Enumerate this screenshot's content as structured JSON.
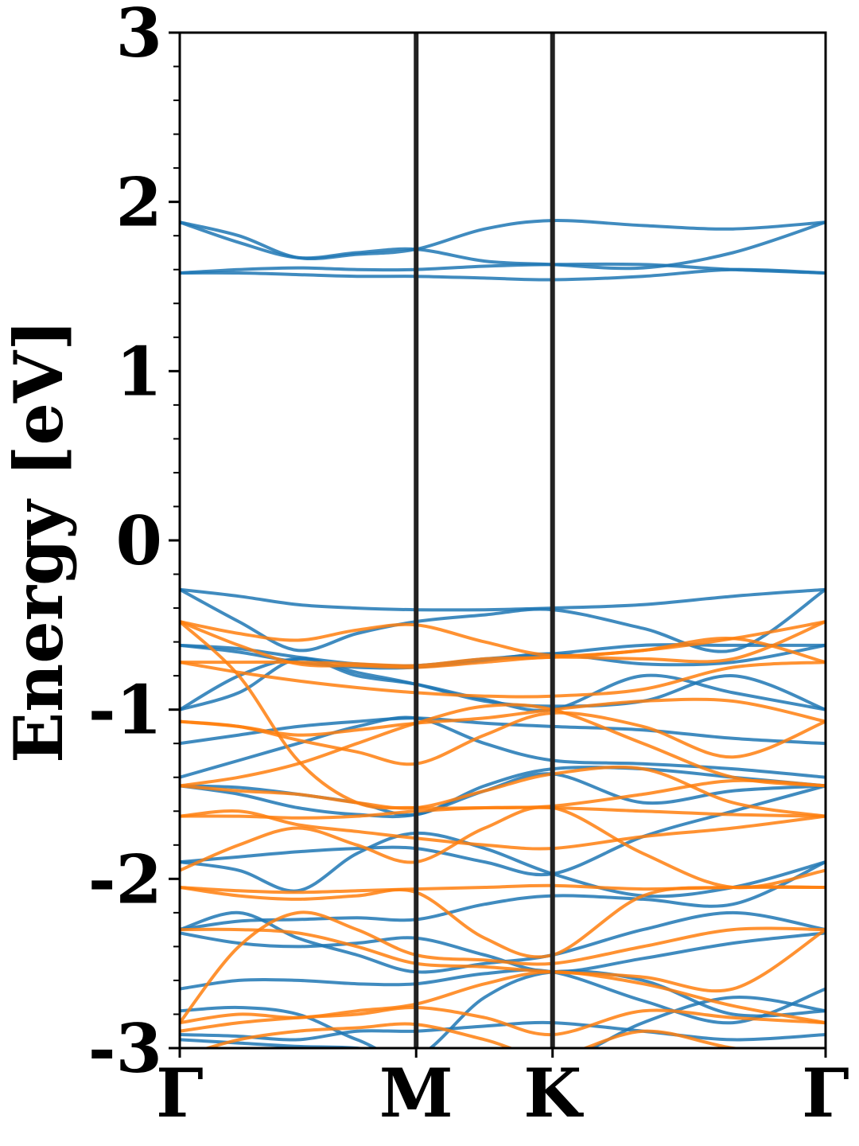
{
  "chart_data": {
    "type": "line",
    "title": "",
    "xlabel": "",
    "ylabel": "Energy [eV]",
    "ylim": [
      -3,
      3
    ],
    "yticks": [
      "3",
      "2",
      "1",
      "0",
      "-1",
      "-2",
      "-3"
    ],
    "ytick_values": [
      3,
      2,
      1,
      0,
      -1,
      -2,
      -3
    ],
    "yminor_step": 0.2,
    "kpoints": [
      {
        "label": "Γ",
        "x": 0
      },
      {
        "label": "M",
        "x": 1
      },
      {
        "label": "K",
        "x": 1.577
      },
      {
        "label": "Γ",
        "x": 2.732
      }
    ],
    "grid": false,
    "colors": {
      "spin_up": "#1f77b4",
      "spin_down": "#ff7f0e",
      "divider": "#222222"
    },
    "x": [
      0,
      0.25,
      0.5,
      0.75,
      1,
      1.29,
      1.577,
      1.96,
      2.34,
      2.732
    ],
    "series": [
      {
        "spin": "up",
        "values": [
          1.88,
          1.8,
          1.67,
          1.69,
          1.72,
          1.84,
          1.89,
          1.86,
          1.84,
          1.88
        ]
      },
      {
        "spin": "up",
        "values": [
          1.88,
          1.76,
          1.67,
          1.7,
          1.72,
          1.65,
          1.63,
          1.61,
          1.7,
          1.88
        ]
      },
      {
        "spin": "up",
        "values": [
          1.58,
          1.6,
          1.61,
          1.6,
          1.6,
          1.62,
          1.63,
          1.63,
          1.6,
          1.58
        ]
      },
      {
        "spin": "up",
        "values": [
          1.58,
          1.58,
          1.57,
          1.56,
          1.56,
          1.55,
          1.54,
          1.56,
          1.6,
          1.58
        ]
      },
      {
        "spin": "up",
        "values": [
          -0.29,
          -0.33,
          -0.38,
          -0.4,
          -0.41,
          -0.41,
          -0.4,
          -0.38,
          -0.33,
          -0.29
        ]
      },
      {
        "spin": "up",
        "values": [
          -0.29,
          -0.48,
          -0.65,
          -0.55,
          -0.48,
          -0.44,
          -0.41,
          -0.52,
          -0.65,
          -0.29
        ]
      },
      {
        "spin": "up",
        "values": [
          -0.62,
          -0.64,
          -0.69,
          -0.73,
          -0.74,
          -0.7,
          -0.67,
          -0.62,
          -0.62,
          -0.62
        ]
      },
      {
        "spin": "up",
        "values": [
          -0.62,
          -0.66,
          -0.72,
          -0.75,
          -0.75,
          -0.71,
          -0.67,
          -0.73,
          -0.72,
          -0.62
        ]
      },
      {
        "spin": "up",
        "values": [
          -1.0,
          -0.9,
          -0.7,
          -0.8,
          -0.85,
          -0.94,
          -1.0,
          -0.8,
          -0.9,
          -1.0
        ]
      },
      {
        "spin": "up",
        "values": [
          -1.0,
          -0.8,
          -0.7,
          -0.78,
          -0.85,
          -0.95,
          -0.98,
          -0.95,
          -0.8,
          -1.0
        ]
      },
      {
        "spin": "up",
        "values": [
          -1.2,
          -1.15,
          -1.1,
          -1.07,
          -1.05,
          -1.08,
          -1.1,
          -1.12,
          -1.17,
          -1.2
        ]
      },
      {
        "spin": "up",
        "values": [
          -1.4,
          -1.3,
          -1.2,
          -1.1,
          -1.05,
          -1.2,
          -1.3,
          -1.32,
          -1.35,
          -1.4
        ]
      },
      {
        "spin": "up",
        "values": [
          -1.45,
          -1.46,
          -1.5,
          -1.55,
          -1.62,
          -1.45,
          -1.35,
          -1.35,
          -1.4,
          -1.45
        ]
      },
      {
        "spin": "up",
        "values": [
          -1.45,
          -1.5,
          -1.58,
          -1.62,
          -1.62,
          -1.48,
          -1.38,
          -1.55,
          -1.48,
          -1.45
        ]
      },
      {
        "spin": "up",
        "values": [
          -1.9,
          -1.87,
          -1.84,
          -1.82,
          -1.82,
          -1.9,
          -1.97,
          -1.75,
          -1.6,
          -1.45
        ]
      },
      {
        "spin": "up",
        "values": [
          -1.9,
          -1.95,
          -2.07,
          -1.85,
          -1.73,
          -1.82,
          -1.97,
          -2.1,
          -2.05,
          -1.9
        ]
      },
      {
        "spin": "up",
        "values": [
          -2.3,
          -2.25,
          -2.24,
          -2.23,
          -2.24,
          -2.15,
          -2.1,
          -2.12,
          -2.15,
          -1.9
        ]
      },
      {
        "spin": "up",
        "values": [
          -2.3,
          -2.2,
          -2.35,
          -2.45,
          -2.55,
          -2.5,
          -2.45,
          -2.3,
          -2.2,
          -2.3
        ]
      },
      {
        "spin": "up",
        "values": [
          -2.32,
          -2.38,
          -2.4,
          -2.38,
          -2.35,
          -2.45,
          -2.55,
          -2.47,
          -2.38,
          -2.32
        ]
      },
      {
        "spin": "up",
        "values": [
          -2.65,
          -2.6,
          -2.6,
          -2.62,
          -2.62,
          -2.56,
          -2.55,
          -2.72,
          -2.85,
          -2.65
        ]
      },
      {
        "spin": "up",
        "values": [
          -2.78,
          -2.76,
          -2.8,
          -2.95,
          -3.05,
          -2.7,
          -2.55,
          -2.6,
          -2.8,
          -2.78
        ]
      },
      {
        "spin": "up",
        "values": [
          -2.92,
          -2.93,
          -2.95,
          -2.9,
          -2.9,
          -2.87,
          -2.85,
          -2.9,
          -2.95,
          -2.92
        ]
      },
      {
        "spin": "up",
        "values": [
          -2.95,
          -2.97,
          -2.99,
          -3.0,
          -3.05,
          -3.05,
          -3.1,
          -2.85,
          -2.7,
          -2.78
        ]
      },
      {
        "spin": "down",
        "values": [
          -0.48,
          -0.55,
          -0.59,
          -0.53,
          -0.5,
          -0.6,
          -0.68,
          -0.65,
          -0.58,
          -0.48
        ]
      },
      {
        "spin": "down",
        "values": [
          -0.48,
          -0.62,
          -0.73,
          -0.74,
          -0.75,
          -0.72,
          -0.69,
          -0.7,
          -0.7,
          -0.48
        ]
      },
      {
        "spin": "down",
        "values": [
          -0.72,
          -0.72,
          -0.72,
          -0.73,
          -0.74,
          -0.7,
          -0.69,
          -0.65,
          -0.58,
          -0.72
        ]
      },
      {
        "spin": "down",
        "values": [
          -0.72,
          -0.78,
          -0.83,
          -0.87,
          -0.9,
          -0.92,
          -0.92,
          -0.88,
          -0.75,
          -0.72
        ]
      },
      {
        "spin": "down",
        "values": [
          -0.48,
          -0.8,
          -1.3,
          -1.55,
          -1.58,
          -1.58,
          -1.57,
          -1.5,
          -1.42,
          -1.45
        ]
      },
      {
        "spin": "down",
        "values": [
          -1.07,
          -1.1,
          -1.18,
          -1.25,
          -1.32,
          -1.15,
          -1.02,
          -1.1,
          -1.28,
          -1.07
        ]
      },
      {
        "spin": "down",
        "values": [
          -1.07,
          -1.1,
          -1.15,
          -1.12,
          -1.08,
          -1.05,
          -1.0,
          -0.95,
          -0.95,
          -1.07
        ]
      },
      {
        "spin": "down",
        "values": [
          -1.45,
          -1.4,
          -1.32,
          -1.2,
          -1.08,
          -0.98,
          -1.0,
          -1.2,
          -1.4,
          -1.45
        ]
      },
      {
        "spin": "down",
        "values": [
          -1.45,
          -1.48,
          -1.5,
          -1.55,
          -1.58,
          -1.48,
          -1.38,
          -1.35,
          -1.55,
          -1.63
        ]
      },
      {
        "spin": "down",
        "values": [
          -1.63,
          -1.63,
          -1.64,
          -1.63,
          -1.6,
          -1.58,
          -1.58,
          -1.6,
          -1.62,
          -1.63
        ]
      },
      {
        "spin": "down",
        "values": [
          -1.63,
          -1.6,
          -1.68,
          -1.72,
          -1.76,
          -1.8,
          -1.82,
          -1.75,
          -1.7,
          -1.63
        ]
      },
      {
        "spin": "down",
        "values": [
          -1.95,
          -1.8,
          -1.7,
          -1.8,
          -1.9,
          -1.7,
          -1.58,
          -1.85,
          -2.05,
          -1.95
        ]
      },
      {
        "spin": "down",
        "values": [
          -2.05,
          -2.07,
          -2.08,
          -2.07,
          -2.06,
          -2.05,
          -2.04,
          -2.06,
          -2.05,
          -2.05
        ]
      },
      {
        "spin": "down",
        "values": [
          -2.05,
          -2.1,
          -2.12,
          -2.1,
          -2.08,
          -2.35,
          -2.45,
          -2.1,
          -2.05,
          -2.05
        ]
      },
      {
        "spin": "down",
        "values": [
          -2.3,
          -2.3,
          -2.32,
          -2.4,
          -2.5,
          -2.52,
          -2.55,
          -2.58,
          -2.65,
          -2.3
        ]
      },
      {
        "spin": "down",
        "values": [
          -2.85,
          -2.4,
          -2.2,
          -2.3,
          -2.45,
          -2.48,
          -2.5,
          -2.4,
          -2.3,
          -2.3
        ]
      },
      {
        "spin": "down",
        "values": [
          -2.85,
          -2.8,
          -2.82,
          -2.78,
          -2.74,
          -2.62,
          -2.55,
          -2.62,
          -2.75,
          -2.85
        ]
      },
      {
        "spin": "down",
        "values": [
          -2.9,
          -2.85,
          -2.82,
          -2.8,
          -2.76,
          -2.82,
          -2.92,
          -2.78,
          -2.82,
          -2.85
        ]
      },
      {
        "spin": "down",
        "values": [
          -3.05,
          -2.95,
          -2.9,
          -2.88,
          -2.86,
          -2.95,
          -3.05,
          -2.9,
          -3.0,
          -3.05
        ]
      }
    ]
  }
}
